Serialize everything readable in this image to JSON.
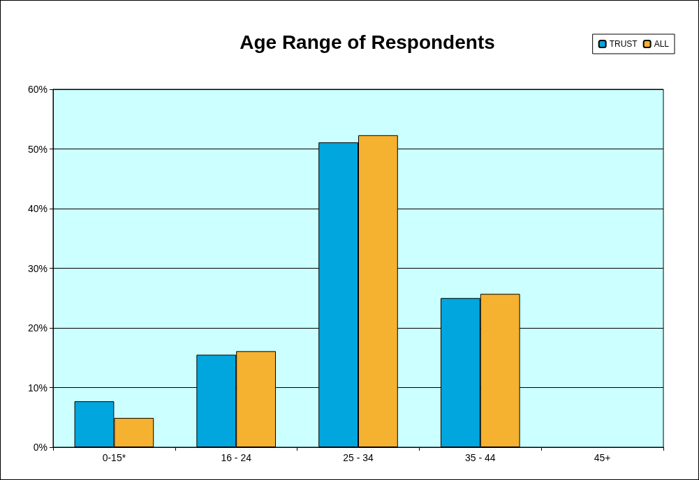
{
  "chart_data": {
    "type": "bar",
    "title": "Age Range of Respondents",
    "categories": [
      "0-15*",
      "16 - 24",
      "25 - 34",
      "35 - 44",
      "45+"
    ],
    "series": [
      {
        "name": "TRUST",
        "color": "#00a6dd",
        "values": [
          7.7,
          15.5,
          51.1,
          25.0,
          0
        ]
      },
      {
        "name": "ALL",
        "color": "#f5b130",
        "values": [
          4.9,
          16.1,
          52.3,
          25.7,
          0
        ]
      }
    ],
    "ylim": [
      0,
      60
    ],
    "yticks": [
      {
        "value": 0,
        "label": "0%"
      },
      {
        "value": 10,
        "label": "10%"
      },
      {
        "value": 20,
        "label": "20%"
      },
      {
        "value": 30,
        "label": "30%"
      },
      {
        "value": 40,
        "label": "40%"
      },
      {
        "value": 50,
        "label": "50%"
      },
      {
        "value": 60,
        "label": "60%"
      }
    ],
    "grid": "y",
    "legend": "top right"
  }
}
